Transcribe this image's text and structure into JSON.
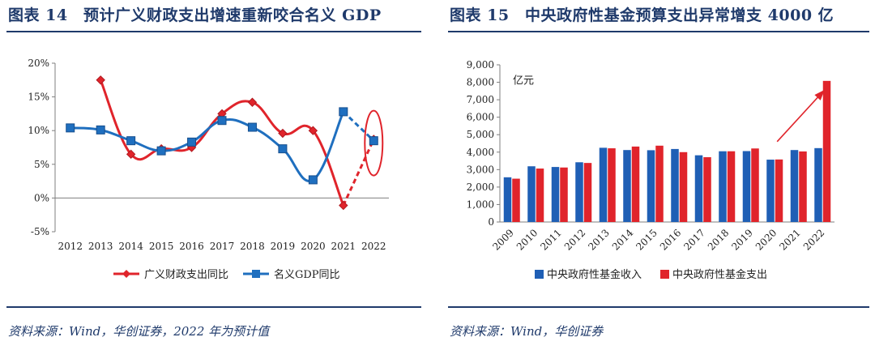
{
  "left_panel": {
    "title": "图表 14　预计广义财政支出增速重新咬合名义 GDP",
    "source": "资料来源：Wind，华创证券，2022 年为预计值",
    "chart_data": {
      "type": "line",
      "categories": [
        "2012",
        "2013",
        "2014",
        "2015",
        "2016",
        "2017",
        "2018",
        "2019",
        "2020",
        "2021",
        "2022"
      ],
      "ylim": [
        -5,
        20
      ],
      "yticks": [
        -5,
        0,
        5,
        10,
        15,
        20
      ],
      "ytick_labels": [
        "-5%",
        "0%",
        "5%",
        "10%",
        "15%",
        "20%"
      ],
      "series": [
        {
          "name": "广义财政支出同比",
          "color": "#e0242b",
          "marker": "diamond",
          "values": [
            null,
            17.5,
            6.5,
            7.3,
            7.5,
            12.5,
            14.2,
            9.6,
            10.0,
            -1.1,
            8.7
          ],
          "projected_from_index": 9
        },
        {
          "name": "名义GDP同比",
          "color": "#1f6fbf",
          "marker": "square",
          "values": [
            10.4,
            10.1,
            8.5,
            7.0,
            8.3,
            11.5,
            10.5,
            7.3,
            2.7,
            12.8,
            8.5
          ],
          "projected_from_index": 9
        }
      ]
    }
  },
  "right_panel": {
    "title": "图表 15　中央政府性基金预算支出异常增支 4000 亿",
    "source": "资料来源：Wind，华创证券",
    "chart_data": {
      "type": "bar",
      "categories": [
        "2009",
        "2010",
        "2011",
        "2012",
        "2013",
        "2014",
        "2015",
        "2016",
        "2017",
        "2018",
        "2019",
        "2020",
        "2021",
        "2022"
      ],
      "unit_label": "亿元",
      "ylim": [
        0,
        9000
      ],
      "yticks": [
        0,
        1000,
        2000,
        3000,
        4000,
        5000,
        6000,
        7000,
        8000,
        9000
      ],
      "ytick_labels": [
        "0",
        "1,000",
        "2,000",
        "3,000",
        "4,000",
        "5,000",
        "6,000",
        "7,000",
        "8,000",
        "9,000"
      ],
      "series": [
        {
          "name": "中央政府性基金收入",
          "color": "#1f5fb5",
          "values": [
            2560,
            3190,
            3150,
            3420,
            4250,
            4120,
            4110,
            4180,
            3820,
            4050,
            4060,
            3570,
            4120,
            4230
          ]
        },
        {
          "name": "中央政府性基金支出",
          "color": "#e0242b",
          "values": [
            2480,
            3060,
            3120,
            3380,
            4220,
            4320,
            4370,
            4000,
            3710,
            4050,
            4210,
            3580,
            4040,
            8080
          ]
        }
      ]
    }
  }
}
